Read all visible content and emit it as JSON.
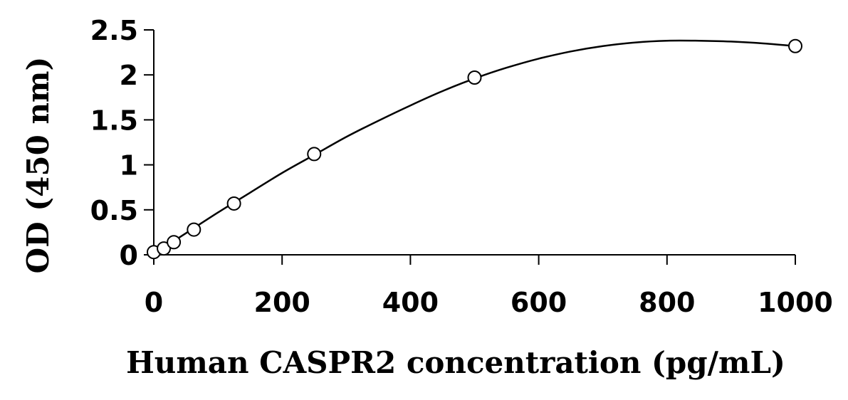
{
  "chart_data": {
    "type": "scatter",
    "title": "",
    "xlabel": "Human CASPR2 concentration (pg/mL)",
    "ylabel": "OD (450 nm)",
    "xlim": [
      0,
      1000
    ],
    "ylim": [
      0,
      2.5
    ],
    "x_ticks": [
      0,
      200,
      400,
      600,
      800,
      1000
    ],
    "y_ticks": [
      0,
      0.5,
      1,
      1.5,
      2,
      2.5
    ],
    "x_tick_labels": [
      "0",
      "200",
      "400",
      "600",
      "800",
      "1000"
    ],
    "y_tick_labels": [
      "0",
      "0.5",
      "1",
      "1.5",
      "2",
      "2.5"
    ],
    "grid": false,
    "legend": false,
    "series": [
      {
        "marker": "open-circle",
        "x": [
          0,
          15.6,
          31.2,
          62.5,
          125,
          250,
          500,
          1000
        ],
        "y": [
          0.03,
          0.07,
          0.14,
          0.28,
          0.57,
          1.12,
          1.97,
          2.32
        ]
      }
    ],
    "trendline": {
      "type": "polynomial",
      "x": [
        0,
        50,
        100,
        150,
        200,
        250,
        300,
        350,
        400,
        450,
        500,
        550,
        600,
        650,
        700,
        750,
        800,
        850,
        900,
        950,
        1000
      ],
      "y": [
        0.01,
        0.24,
        0.47,
        0.69,
        0.91,
        1.11,
        1.31,
        1.49,
        1.66,
        1.82,
        1.96,
        2.08,
        2.18,
        2.26,
        2.32,
        2.36,
        2.38,
        2.38,
        2.37,
        2.35,
        2.32
      ]
    },
    "colors": {
      "axis": "#000000",
      "line": "#000000",
      "marker_fill": "#ffffff",
      "marker_stroke": "#000000",
      "background": "#ffffff"
    }
  }
}
